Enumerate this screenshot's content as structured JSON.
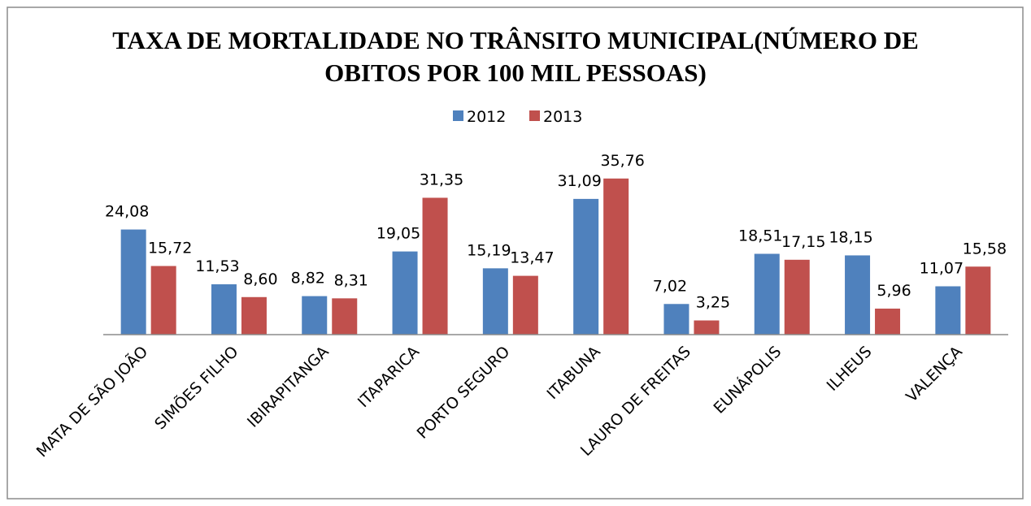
{
  "chart_data": {
    "type": "bar",
    "title": "TAXA DE MORTALIDADE NO TRÂNSITO MUNICIPAL(NÚMERO DE OBITOS POR 100 MIL PESSOAS)",
    "categories": [
      "MATA DE SÃO JOÃO",
      "SIMÕES FILHO",
      "IBIRAPITANGA",
      "ITAPARICA",
      "PORTO SEGURO",
      "ITABUNA",
      "LAURO DE FREITAS",
      "EUNÁPOLIS",
      "ILHEUS",
      "VALENÇA"
    ],
    "series": [
      {
        "name": "2012",
        "color": "#4f81bd",
        "values": [
          24.08,
          11.53,
          8.82,
          19.05,
          15.19,
          31.09,
          7.02,
          18.51,
          18.15,
          11.07
        ],
        "value_labels": [
          "24,08",
          "11,53",
          "8,82",
          "19,05",
          "15,19",
          "31,09",
          "7,02",
          "18,51",
          "18,15",
          "11,07"
        ]
      },
      {
        "name": "2013",
        "color": "#c0504d",
        "values": [
          15.72,
          8.6,
          8.31,
          31.35,
          13.47,
          35.76,
          3.25,
          17.15,
          5.96,
          15.58
        ],
        "value_labels": [
          "15,72",
          "8,60",
          "8,31",
          "31,35",
          "13,47",
          "35,76",
          "3,25",
          "17,15",
          "5,96",
          "15,58"
        ]
      }
    ],
    "ylim": [
      0,
      40
    ],
    "legend": "top"
  }
}
